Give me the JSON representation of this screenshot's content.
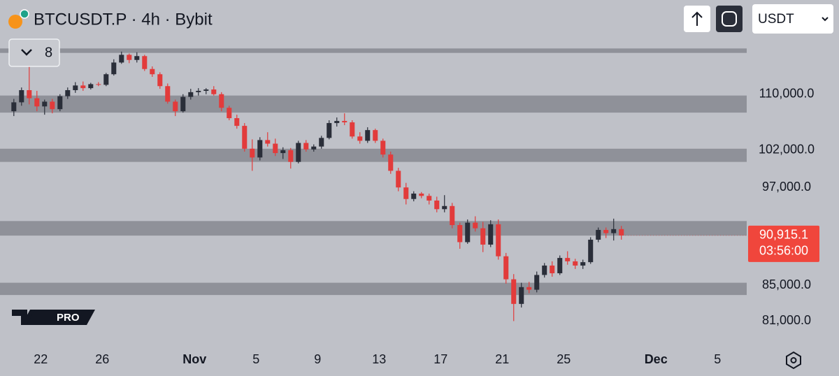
{
  "chart_data": {
    "type": "candlestick",
    "title": "BTCUSDT.P · 4h · Bybit",
    "indicator_count": "8",
    "currency": "USDT",
    "logo_badge": "PRO",
    "log_scale": true,
    "grid": false,
    "up_color": "#2a2e39",
    "down_color": "#e23b3b",
    "zone_color": "#8f9199",
    "ylim": [
      78700,
      124900
    ],
    "xlim": [
      -1.3,
      95.8
    ],
    "yticks": [
      {
        "value": 110000,
        "label": "110,000.0"
      },
      {
        "value": 102000,
        "label": "102,000.0"
      },
      {
        "value": 97000,
        "label": "97,000.0"
      },
      {
        "value": 85000,
        "label": "85,000.0"
      },
      {
        "value": 81000,
        "label": "81,000.0"
      }
    ],
    "xticks": [
      {
        "value": 4,
        "label": "22"
      },
      {
        "value": 12,
        "label": "26"
      },
      {
        "value": 24,
        "label": "Nov"
      },
      {
        "value": 32,
        "label": "5"
      },
      {
        "value": 40,
        "label": "9"
      },
      {
        "value": 48,
        "label": "13"
      },
      {
        "value": 56,
        "label": "17"
      },
      {
        "value": 64,
        "label": "21"
      },
      {
        "value": 72,
        "label": "25"
      },
      {
        "value": 84,
        "label": "Dec"
      },
      {
        "value": 92,
        "label": "5"
      }
    ],
    "zones": [
      [
        116300,
        117000
      ],
      [
        107300,
        109800
      ],
      [
        100400,
        102200
      ],
      [
        90900,
        92700
      ],
      [
        83900,
        85300
      ]
    ],
    "last_price": {
      "value": 90915.1,
      "label": "90,915.1"
    },
    "countdown": "03:56:00",
    "ohlc": [
      [
        107500,
        109300,
        106800,
        108800
      ],
      [
        108800,
        111000,
        108300,
        110600
      ],
      [
        110600,
        114300,
        108500,
        109400
      ],
      [
        109400,
        110500,
        107500,
        108200
      ],
      [
        108200,
        109200,
        107000,
        108900
      ],
      [
        108900,
        109300,
        107200,
        107800
      ],
      [
        107800,
        110000,
        107500,
        109700
      ],
      [
        109700,
        111000,
        109300,
        110600
      ],
      [
        110600,
        111800,
        110200,
        111300
      ],
      [
        111300,
        111900,
        110500,
        110900
      ],
      [
        110900,
        111700,
        110700,
        111500
      ],
      [
        111500,
        111800,
        111200,
        111400
      ],
      [
        111400,
        113200,
        111200,
        113000
      ],
      [
        113000,
        115300,
        112800,
        114800
      ],
      [
        114800,
        116500,
        114600,
        116000
      ],
      [
        116000,
        116200,
        114700,
        115200
      ],
      [
        115200,
        116400,
        114800,
        115800
      ],
      [
        115800,
        116000,
        113500,
        113800
      ],
      [
        113800,
        114200,
        112600,
        113000
      ],
      [
        113000,
        113300,
        110800,
        111200
      ],
      [
        111200,
        111600,
        108600,
        108900
      ],
      [
        108900,
        109200,
        106800,
        107500
      ],
      [
        107500,
        110000,
        107300,
        109600
      ],
      [
        109600,
        110800,
        109200,
        110300
      ],
      [
        110300,
        110900,
        109800,
        110500
      ],
      [
        110500,
        110900,
        110000,
        110700
      ],
      [
        110700,
        111200,
        109800,
        110000
      ],
      [
        110000,
        110300,
        107500,
        108000
      ],
      [
        108000,
        108300,
        106200,
        106500
      ],
      [
        106500,
        107000,
        105000,
        105400
      ],
      [
        105400,
        105800,
        101800,
        102200
      ],
      [
        102200,
        103500,
        99200,
        101000
      ],
      [
        101000,
        103800,
        100600,
        103400
      ],
      [
        103400,
        104500,
        102500,
        102900
      ],
      [
        102900,
        103600,
        101200,
        101600
      ],
      [
        101600,
        102400,
        100800,
        102000
      ],
      [
        102000,
        102300,
        99500,
        100400
      ],
      [
        100400,
        103300,
        100200,
        103000
      ],
      [
        103000,
        103400,
        101800,
        102100
      ],
      [
        102100,
        102800,
        101800,
        102500
      ],
      [
        102500,
        104000,
        102200,
        103700
      ],
      [
        103700,
        106200,
        103500,
        105800
      ],
      [
        105800,
        106600,
        105300,
        106100
      ],
      [
        106100,
        107200,
        105500,
        105900
      ],
      [
        105900,
        106200,
        103600,
        103900
      ],
      [
        103900,
        104500,
        102900,
        103300
      ],
      [
        103300,
        105200,
        103000,
        104800
      ],
      [
        104800,
        105000,
        103000,
        103300
      ],
      [
        103300,
        103600,
        101000,
        101400
      ],
      [
        101400,
        101800,
        98800,
        99200
      ],
      [
        99200,
        99600,
        96500,
        97000
      ],
      [
        97000,
        97600,
        94800,
        95500
      ],
      [
        95500,
        96500,
        95200,
        96200
      ],
      [
        96200,
        96400,
        95600,
        95900
      ],
      [
        95900,
        96200,
        94800,
        95300
      ],
      [
        95300,
        95800,
        93800,
        94200
      ],
      [
        94200,
        96000,
        93800,
        94600
      ],
      [
        94600,
        95000,
        91800,
        92200
      ],
      [
        92200,
        92500,
        89300,
        90100
      ],
      [
        90100,
        92900,
        89900,
        92500
      ],
      [
        92500,
        93300,
        91400,
        91800
      ],
      [
        91800,
        92600,
        88900,
        89800
      ],
      [
        89800,
        92800,
        89500,
        92300
      ],
      [
        92300,
        92900,
        88000,
        88400
      ],
      [
        88400,
        88800,
        85200,
        85700
      ],
      [
        85700,
        86300,
        81000,
        82900
      ],
      [
        82900,
        85300,
        82500,
        84800
      ],
      [
        84800,
        85400,
        84100,
        84500
      ],
      [
        84500,
        86600,
        84200,
        86200
      ],
      [
        86200,
        87600,
        85900,
        87300
      ],
      [
        87300,
        87800,
        86000,
        86400
      ],
      [
        86400,
        88500,
        86200,
        88200
      ],
      [
        88200,
        89000,
        87400,
        87800
      ],
      [
        87800,
        88100,
        86900,
        87300
      ],
      [
        87300,
        88000,
        86900,
        87700
      ],
      [
        87700,
        90700,
        87500,
        90400
      ],
      [
        90400,
        91900,
        90100,
        91600
      ],
      [
        91600,
        91900,
        90600,
        91200
      ],
      [
        91200,
        93000,
        90300,
        91700
      ],
      [
        91700,
        92100,
        90400,
        90915.1
      ]
    ]
  }
}
